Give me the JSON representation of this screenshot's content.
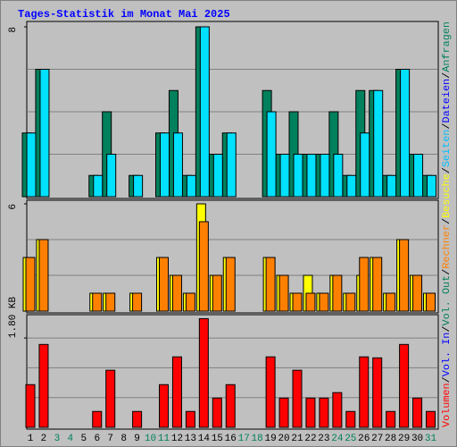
{
  "chart_data": [
    {
      "type": "bar",
      "title": "Tages-Statistik im Monat Mai 2025",
      "ylim": [
        0,
        8
      ],
      "yticks": [
        8
      ],
      "grid": [
        2,
        4,
        6
      ],
      "series": [
        {
          "color": "#00805c",
          "values": [
            3,
            6,
            0,
            0,
            0,
            1,
            4,
            0,
            1,
            0,
            3,
            5,
            1,
            8,
            2,
            3,
            0,
            0,
            5,
            2,
            4,
            2,
            2,
            4,
            1,
            5,
            5,
            1,
            6,
            2,
            1
          ]
        },
        {
          "color": "#00e0ff",
          "values": [
            3,
            6,
            0,
            0,
            0,
            1,
            2,
            0,
            1,
            0,
            3,
            3,
            1,
            8,
            2,
            3,
            0,
            0,
            4,
            2,
            2,
            2,
            2,
            2,
            1,
            3,
            5,
            1,
            6,
            2,
            1
          ]
        }
      ]
    },
    {
      "type": "bar",
      "ylim": [
        0,
        6
      ],
      "yticks": [
        6
      ],
      "grid": [
        2,
        4
      ],
      "series": [
        {
          "color": "#ffff00",
          "values": [
            3,
            4,
            0,
            0,
            0,
            1,
            1,
            0,
            1,
            0,
            3,
            2,
            1,
            6,
            2,
            3,
            0,
            0,
            3,
            2,
            1,
            2,
            1,
            2,
            1,
            2,
            3,
            1,
            4,
            2,
            1
          ]
        },
        {
          "color": "#ff8000",
          "values": [
            3,
            4,
            0,
            0,
            0,
            1,
            1,
            0,
            1,
            0,
            3,
            2,
            1,
            5,
            2,
            3,
            0,
            0,
            3,
            2,
            1,
            1,
            1,
            2,
            1,
            3,
            3,
            1,
            4,
            2,
            1
          ]
        }
      ]
    },
    {
      "type": "bar",
      "ylim": [
        0,
        2.27
      ],
      "yticks": [
        {
          "value": 1.8,
          "label": "1.80 KB"
        }
      ],
      "grid": [
        0.6,
        1.2,
        1.8
      ],
      "series": [
        {
          "color": "#ff0000",
          "values": [
            0.86,
            1.67,
            0,
            0,
            0,
            0.32,
            1.15,
            0,
            0.32,
            0,
            0.86,
            1.42,
            0.32,
            2.19,
            0.59,
            0.86,
            0,
            0,
            1.42,
            0.59,
            1.15,
            0.59,
            0.59,
            0.7,
            0.32,
            1.42,
            1.4,
            0.32,
            1.67,
            0.59,
            0.32
          ]
        }
      ],
      "categories": [
        "1",
        "2",
        "3",
        "4",
        "5",
        "6",
        "7",
        "8",
        "9",
        "10",
        "11",
        "12",
        "13",
        "14",
        "15",
        "16",
        "17",
        "18",
        "19",
        "20",
        "21",
        "22",
        "23",
        "24",
        "25",
        "26",
        "27",
        "28",
        "29",
        "30",
        "31"
      ],
      "highlight_categories": [
        2,
        3,
        9,
        10,
        16,
        17,
        23,
        24,
        30
      ],
      "highlight_color": "#00805c"
    }
  ],
  "legend": [
    {
      "name": "Volumen",
      "color": "#ff0000"
    },
    {
      "name": "Vol. In",
      "color": "#0000ff"
    },
    {
      "name": "Vol. Out",
      "color": "#00805c"
    },
    {
      "name": "Rechner",
      "color": "#ff8000"
    },
    {
      "name": "Besuche",
      "color": "#ffff00"
    },
    {
      "name": "Seiten",
      "color": "#00c0ff"
    },
    {
      "name": "Dateien",
      "color": "#0000ff"
    },
    {
      "name": "Anfragen",
      "color": "#00805c"
    }
  ],
  "legend_separator": "/"
}
